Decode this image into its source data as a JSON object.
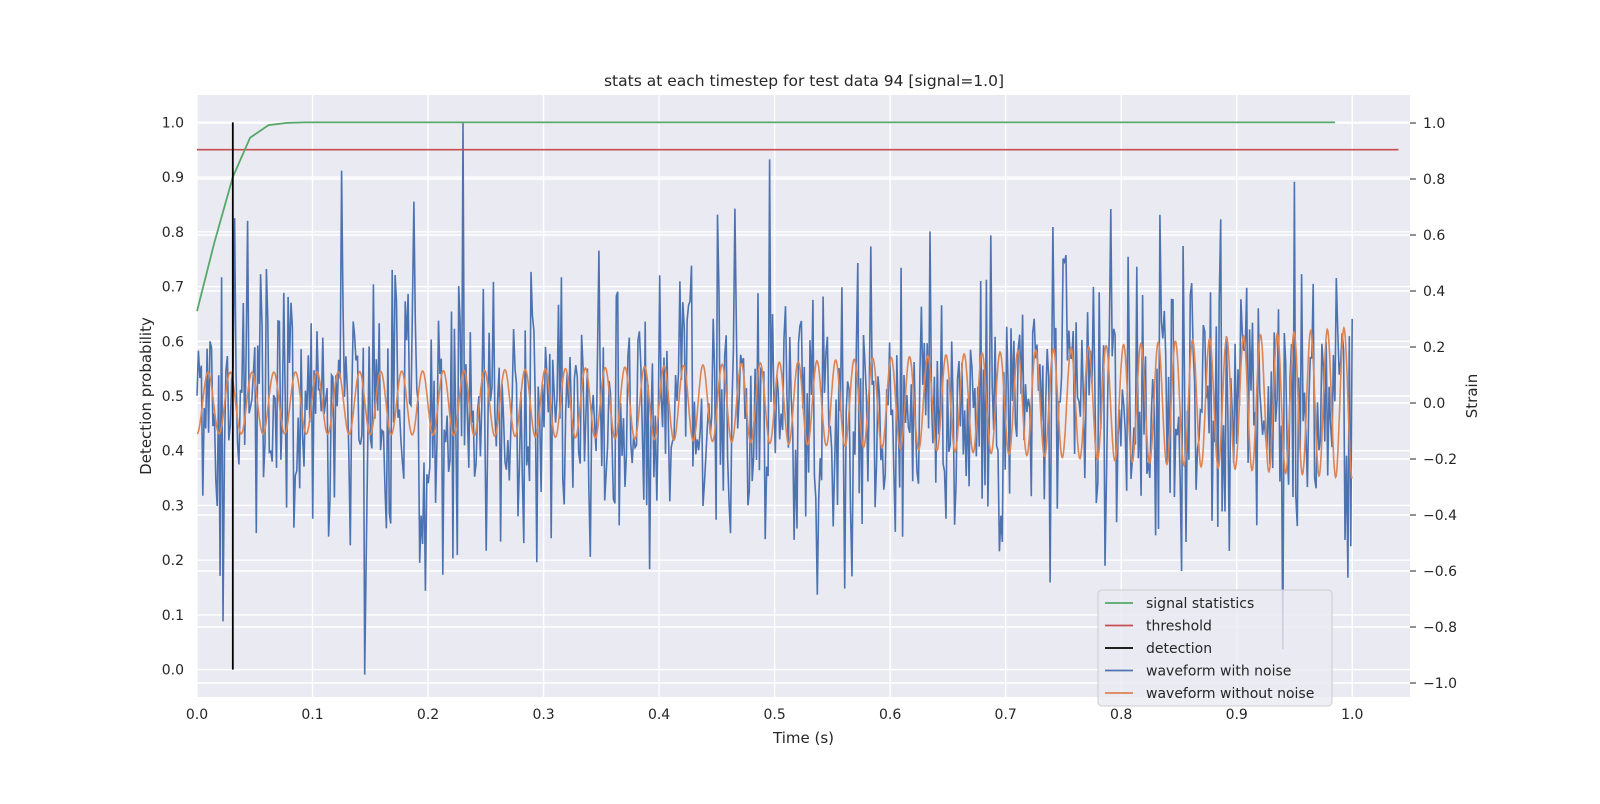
{
  "chart_data": {
    "type": "line",
    "title": "stats at each timestep for test data 94 [signal=1.0]",
    "xlabel": "Time (s)",
    "ylabel_left": "Detection probability",
    "ylabel_right": "Strain",
    "xlim": [
      0.0,
      1.05
    ],
    "ylim_left": [
      -0.05,
      1.05
    ],
    "ylim_right": [
      -1.05,
      1.1
    ],
    "x_ticks": [
      "0.0",
      "0.1",
      "0.2",
      "0.3",
      "0.4",
      "0.5",
      "0.6",
      "0.7",
      "0.8",
      "0.9",
      "1.0"
    ],
    "y_ticks_left": [
      "0.0",
      "0.1",
      "0.2",
      "0.3",
      "0.4",
      "0.5",
      "0.6",
      "0.7",
      "0.8",
      "0.9",
      "1.0"
    ],
    "y_ticks_right": [
      "−1.0",
      "−0.8",
      "−0.6",
      "−0.4",
      "−0.2",
      "0.0",
      "0.2",
      "0.4",
      "0.6",
      "0.8",
      "1.0"
    ],
    "grid": true,
    "legend_position": "lower-right",
    "colors": {
      "signal_statistics": "#55a868",
      "threshold": "#c44e52",
      "detection": "#000000",
      "waveform_with_noise": "#4c72b0",
      "waveform_without_noise": "#dd8452",
      "plot_background": "#eaeaf2",
      "grid": "#ffffff"
    },
    "legend": [
      {
        "label": "signal statistics",
        "color": "#55a868"
      },
      {
        "label": "threshold",
        "color": "#c44e52"
      },
      {
        "label": "detection",
        "color": "#000000"
      },
      {
        "label": "waveform with noise",
        "color": "#4c72b0"
      },
      {
        "label": "waveform without noise",
        "color": "#dd8452"
      }
    ],
    "series": [
      {
        "name": "signal statistics",
        "axis": "left",
        "x": [
          0.0,
          0.015,
          0.031,
          0.046,
          0.062,
          0.078,
          0.094,
          0.2,
          0.4,
          0.6,
          0.8,
          0.985
        ],
        "y": [
          0.655,
          0.78,
          0.9,
          0.972,
          0.995,
          0.999,
          1.0,
          1.0,
          1.0,
          1.0,
          1.0,
          1.0
        ]
      },
      {
        "name": "threshold",
        "axis": "left",
        "x": [
          0.0,
          1.04
        ],
        "y": [
          0.95,
          0.95
        ]
      },
      {
        "name": "detection",
        "axis": "left",
        "x": [
          0.031,
          0.031
        ],
        "y": [
          0.0,
          1.0
        ]
      },
      {
        "name": "waveform with noise",
        "axis": "right",
        "samples": 800,
        "x_range": [
          0.0,
          1.0
        ],
        "y_range": [
          -0.97,
          1.0
        ],
        "y_std": 0.3,
        "marked_peaks": [
          {
            "x": 0.23,
            "y": 1.0
          },
          {
            "x": 0.125,
            "y": 0.83
          },
          {
            "x": 0.495,
            "y": 0.87
          },
          {
            "x": 0.95,
            "y": 0.79
          },
          {
            "x": 0.145,
            "y": -0.97
          },
          {
            "x": 0.022,
            "y": -0.78
          },
          {
            "x": 0.94,
            "y": -0.88
          }
        ]
      },
      {
        "name": "waveform without noise",
        "axis": "right",
        "model": "chirp",
        "x_range": [
          0.0,
          1.0
        ],
        "amplitude_start": 0.11,
        "amplitude_end": 0.27,
        "frequency_start_hz": 52,
        "frequency_end_hz": 70
      }
    ]
  }
}
